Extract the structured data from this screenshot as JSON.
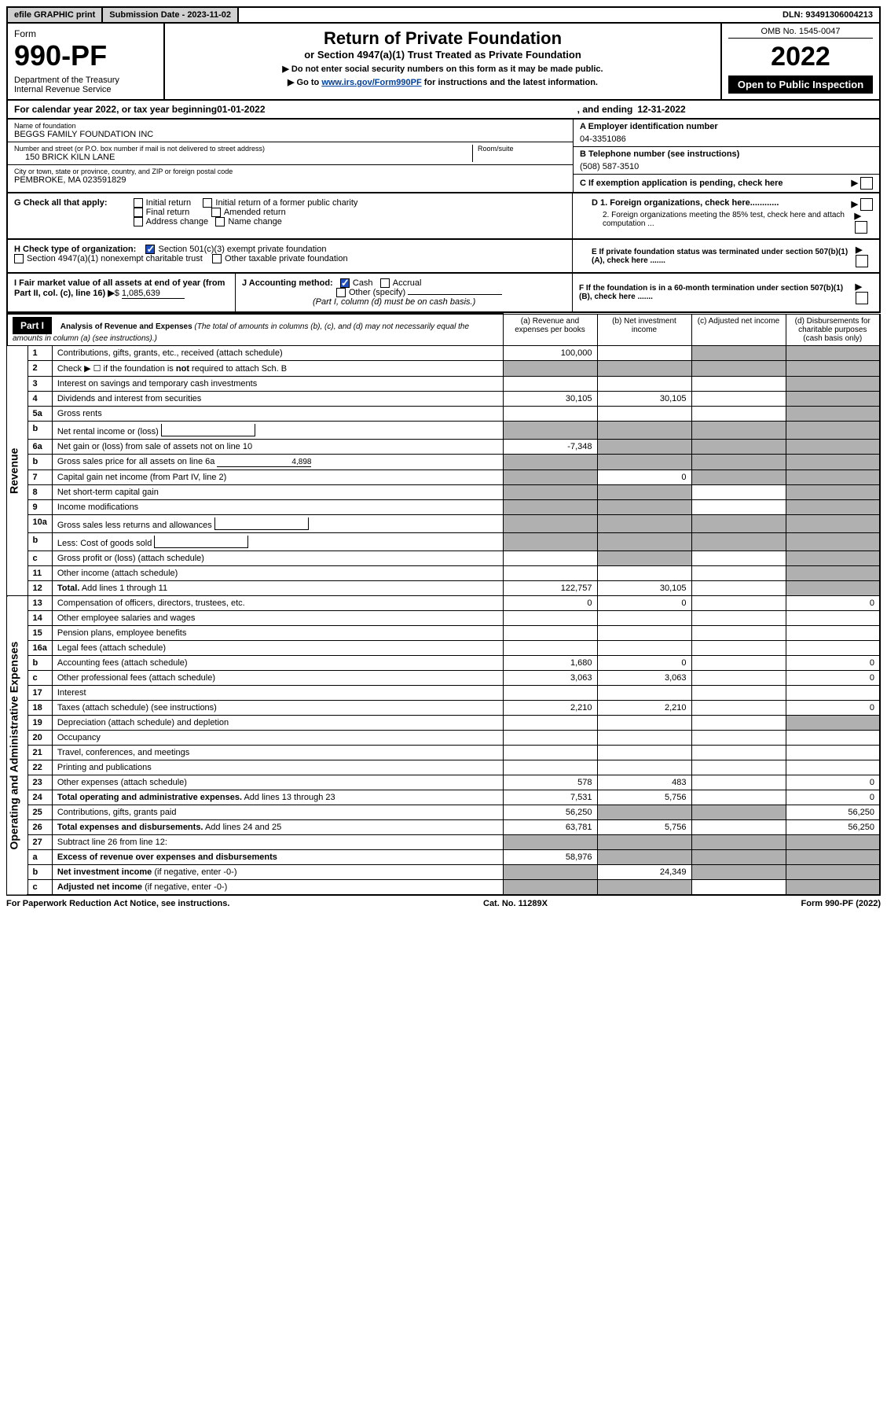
{
  "topbar": {
    "efile": "efile GRAPHIC print",
    "sub_label": "Submission Date - 2023-11-02",
    "dln": "DLN: 93491306004213"
  },
  "header": {
    "form_label": "Form",
    "form_num": "990-PF",
    "dept": "Department of the Treasury\nInternal Revenue Service",
    "title": "Return of Private Foundation",
    "subtitle": "or Section 4947(a)(1) Trust Treated as Private Foundation",
    "instr1": "▶ Do not enter social security numbers on this form as it may be made public.",
    "instr2_pre": "▶ Go to ",
    "instr2_link": "www.irs.gov/Form990PF",
    "instr2_post": " for instructions and the latest information.",
    "omb": "OMB No. 1545-0047",
    "year": "2022",
    "open": "Open to Public Inspection"
  },
  "cal": {
    "text_pre": "For calendar year 2022, or tax year beginning ",
    "begin": "01-01-2022",
    "text_mid": " , and ending ",
    "end": "12-31-2022"
  },
  "info": {
    "name_label": "Name of foundation",
    "name": "BEGGS FAMILY FOUNDATION INC",
    "addr_label": "Number and street (or P.O. box number if mail is not delivered to street address)",
    "addr": "150 BRICK KILN LANE",
    "room_label": "Room/suite",
    "city_label": "City or town, state or province, country, and ZIP or foreign postal code",
    "city": "PEMBROKE, MA  023591829",
    "ein_label": "A Employer identification number",
    "ein": "04-3351086",
    "tel_label": "B Telephone number (see instructions)",
    "tel": "(508) 587-3510",
    "c_label": "C If exemption application is pending, check here"
  },
  "g": {
    "label": "G Check all that apply:",
    "initial": "Initial return",
    "initial_former": "Initial return of a former public charity",
    "final": "Final return",
    "amended": "Amended return",
    "addr_change": "Address change",
    "name_change": "Name change"
  },
  "d": {
    "d1": "D 1. Foreign organizations, check here............",
    "d2": "2. Foreign organizations meeting the 85% test, check here and attach computation ...",
    "e": "E  If private foundation status was terminated under section 507(b)(1)(A), check here .......",
    "f": "F  If the foundation is in a 60-month termination under section 507(b)(1)(B), check here ......."
  },
  "h": {
    "label": "H Check type of organization:",
    "opt1": "Section 501(c)(3) exempt private foundation",
    "opt2": "Section 4947(a)(1) nonexempt charitable trust",
    "opt3": "Other taxable private foundation"
  },
  "i": {
    "label": "I Fair market value of all assets at end of year (from Part II, col. (c), line 16)",
    "val": "1,085,639"
  },
  "j": {
    "label": "J Accounting method:",
    "cash": "Cash",
    "accrual": "Accrual",
    "other": "Other (specify)",
    "note": "(Part I, column (d) must be on cash basis.)"
  },
  "part1": {
    "label": "Part I",
    "title": "Analysis of Revenue and Expenses",
    "title_note": " (The total of amounts in columns (b), (c), and (d) may not necessarily equal the amounts in column (a) (see instructions).)",
    "col_a": "(a)   Revenue and expenses per books",
    "col_b": "(b)   Net investment income",
    "col_c": "(c)   Adjusted net income",
    "col_d": "(d)   Disbursements for charitable purposes (cash basis only)"
  },
  "vlabels": {
    "rev": "Revenue",
    "exp": "Operating and Administrative Expenses"
  },
  "rows": [
    {
      "n": "1",
      "d": "Contributions, gifts, grants, etc., received (attach schedule)",
      "a": "100,000",
      "b": "",
      "c": "shade",
      "d2": "shade"
    },
    {
      "n": "2",
      "d": "Check ▶ ☐ if the foundation is <b>not</b> required to attach Sch. B",
      "a": "shade",
      "b": "shade",
      "c": "shade",
      "d2": "shade"
    },
    {
      "n": "3",
      "d": "Interest on savings and temporary cash investments",
      "a": "",
      "b": "",
      "c": "",
      "d2": "shade"
    },
    {
      "n": "4",
      "d": "Dividends and interest from securities",
      "a": "30,105",
      "b": "30,105",
      "c": "",
      "d2": "shade"
    },
    {
      "n": "5a",
      "d": "Gross rents",
      "a": "",
      "b": "",
      "c": "",
      "d2": "shade"
    },
    {
      "n": "b",
      "d": "Net rental income or (loss)",
      "a": "shade",
      "b": "shade",
      "c": "shade",
      "d2": "shade",
      "inline": true
    },
    {
      "n": "6a",
      "d": "Net gain or (loss) from sale of assets not on line 10",
      "a": "-7,348",
      "b": "shade",
      "c": "shade",
      "d2": "shade"
    },
    {
      "n": "b",
      "d": "Gross sales price for all assets on line 6a",
      "a": "shade",
      "b": "shade",
      "c": "shade",
      "d2": "shade",
      "inline_val": "4,898"
    },
    {
      "n": "7",
      "d": "Capital gain net income (from Part IV, line 2)",
      "a": "shade",
      "b": "0",
      "c": "shade",
      "d2": "shade"
    },
    {
      "n": "8",
      "d": "Net short-term capital gain",
      "a": "shade",
      "b": "shade",
      "c": "",
      "d2": "shade"
    },
    {
      "n": "9",
      "d": "Income modifications",
      "a": "shade",
      "b": "shade",
      "c": "",
      "d2": "shade"
    },
    {
      "n": "10a",
      "d": "Gross sales less returns and allowances",
      "a": "shade",
      "b": "shade",
      "c": "shade",
      "d2": "shade",
      "inline": true
    },
    {
      "n": "b",
      "d": "Less: Cost of goods sold",
      "a": "shade",
      "b": "shade",
      "c": "shade",
      "d2": "shade",
      "inline": true
    },
    {
      "n": "c",
      "d": "Gross profit or (loss) (attach schedule)",
      "a": "",
      "b": "shade",
      "c": "",
      "d2": "shade"
    },
    {
      "n": "11",
      "d": "Other income (attach schedule)",
      "a": "",
      "b": "",
      "c": "",
      "d2": "shade"
    },
    {
      "n": "12",
      "d": "<b>Total.</b> Add lines 1 through 11",
      "a": "122,757",
      "b": "30,105",
      "c": "",
      "d2": "shade"
    },
    {
      "n": "13",
      "d": "Compensation of officers, directors, trustees, etc.",
      "a": "0",
      "b": "0",
      "c": "",
      "d2": "0",
      "sect": "exp"
    },
    {
      "n": "14",
      "d": "Other employee salaries and wages",
      "a": "",
      "b": "",
      "c": "",
      "d2": ""
    },
    {
      "n": "15",
      "d": "Pension plans, employee benefits",
      "a": "",
      "b": "",
      "c": "",
      "d2": ""
    },
    {
      "n": "16a",
      "d": "Legal fees (attach schedule)",
      "a": "",
      "b": "",
      "c": "",
      "d2": ""
    },
    {
      "n": "b",
      "d": "Accounting fees (attach schedule)",
      "a": "1,680",
      "b": "0",
      "c": "",
      "d2": "0"
    },
    {
      "n": "c",
      "d": "Other professional fees (attach schedule)",
      "a": "3,063",
      "b": "3,063",
      "c": "",
      "d2": "0"
    },
    {
      "n": "17",
      "d": "Interest",
      "a": "",
      "b": "",
      "c": "",
      "d2": ""
    },
    {
      "n": "18",
      "d": "Taxes (attach schedule) (see instructions)",
      "a": "2,210",
      "b": "2,210",
      "c": "",
      "d2": "0"
    },
    {
      "n": "19",
      "d": "Depreciation (attach schedule) and depletion",
      "a": "",
      "b": "",
      "c": "",
      "d2": "shade"
    },
    {
      "n": "20",
      "d": "Occupancy",
      "a": "",
      "b": "",
      "c": "",
      "d2": ""
    },
    {
      "n": "21",
      "d": "Travel, conferences, and meetings",
      "a": "",
      "b": "",
      "c": "",
      "d2": ""
    },
    {
      "n": "22",
      "d": "Printing and publications",
      "a": "",
      "b": "",
      "c": "",
      "d2": ""
    },
    {
      "n": "23",
      "d": "Other expenses (attach schedule)",
      "a": "578",
      "b": "483",
      "c": "",
      "d2": "0"
    },
    {
      "n": "24",
      "d": "<b>Total operating and administrative expenses.</b> Add lines 13 through 23",
      "a": "7,531",
      "b": "5,756",
      "c": "",
      "d2": "0"
    },
    {
      "n": "25",
      "d": "Contributions, gifts, grants paid",
      "a": "56,250",
      "b": "shade",
      "c": "shade",
      "d2": "56,250"
    },
    {
      "n": "26",
      "d": "<b>Total expenses and disbursements.</b> Add lines 24 and 25",
      "a": "63,781",
      "b": "5,756",
      "c": "",
      "d2": "56,250"
    },
    {
      "n": "27",
      "d": "Subtract line 26 from line 12:",
      "a": "shade",
      "b": "shade",
      "c": "shade",
      "d2": "shade",
      "sect": "end"
    },
    {
      "n": "a",
      "d": "<b>Excess of revenue over expenses and disbursements</b>",
      "a": "58,976",
      "b": "shade",
      "c": "shade",
      "d2": "shade"
    },
    {
      "n": "b",
      "d": "<b>Net investment income</b> (if negative, enter -0-)",
      "a": "shade",
      "b": "24,349",
      "c": "shade",
      "d2": "shade"
    },
    {
      "n": "c",
      "d": "<b>Adjusted net income</b> (if negative, enter -0-)",
      "a": "shade",
      "b": "shade",
      "c": "",
      "d2": "shade"
    }
  ],
  "footer": {
    "left": "For Paperwork Reduction Act Notice, see instructions.",
    "mid": "Cat. No. 11289X",
    "right": "Form 990-PF (2022)"
  }
}
